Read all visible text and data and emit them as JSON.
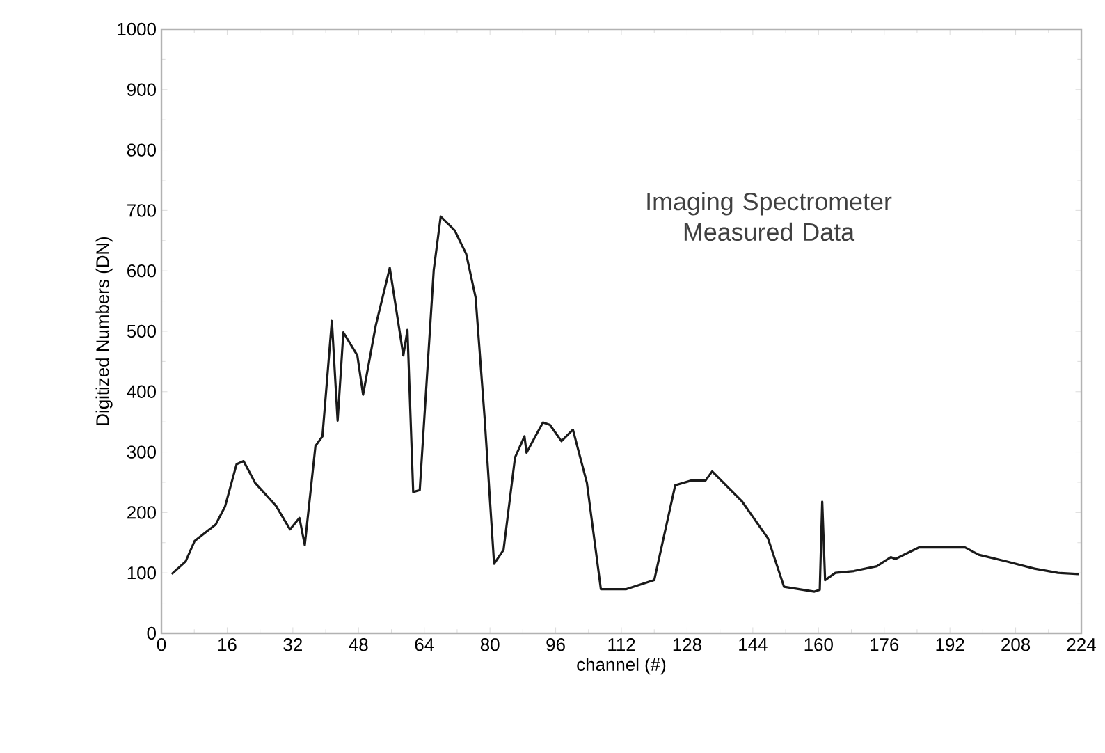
{
  "chart_data": {
    "type": "line",
    "xlabel": "channel (#)",
    "ylabel": "Digitized  Numbers (DN)",
    "annotations": [
      "Imaging Spectrometer Measured Data"
    ],
    "xlim": [
      0,
      224
    ],
    "ylim": [
      0,
      1000
    ],
    "xticks": [
      0,
      16,
      32,
      48,
      64,
      80,
      96,
      112,
      128,
      144,
      160,
      176,
      192,
      208,
      224
    ],
    "yticks": [
      0,
      100,
      200,
      300,
      400,
      500,
      600,
      700,
      800,
      900,
      1000
    ],
    "color": "#1a1a1a",
    "x": [
      2.5,
      5.9,
      8.1,
      13.2,
      15.5,
      18.3,
      20,
      22.8,
      27.9,
      31.3,
      33.6,
      34.9,
      37.5,
      39.2,
      41.5,
      42.9,
      44.3,
      47.7,
      49.1,
      52.2,
      55.6,
      58.9,
      59.9,
      61.3,
      62.9,
      66.3,
      68,
      71.4,
      74.2,
      76.5,
      78.7,
      81,
      83.3,
      86.1,
      88.4,
      88.9,
      92.9,
      94.6,
      97.4,
      100.2,
      103.6,
      107,
      113.2,
      120,
      125.1,
      129.1,
      132.5,
      134.1,
      141.4,
      147.7,
      151.6,
      159,
      160.3,
      160.9,
      161.6,
      164.1,
      168.6,
      174.2,
      177.6,
      178.7,
      184.4,
      188.9,
      195.7,
      199,
      205.8,
      212.6,
      218.3,
      223.4
    ],
    "values": [
      98,
      119,
      153,
      180,
      210,
      280,
      285,
      249,
      211,
      172,
      191,
      146,
      310,
      326,
      517,
      352,
      498,
      460,
      395,
      510,
      605,
      460,
      502,
      234,
      237,
      601,
      690,
      667,
      628,
      556,
      356,
      115,
      138,
      291,
      326,
      299,
      349,
      345,
      318,
      337,
      249,
      73,
      73,
      88,
      245,
      253,
      253,
      268,
      218,
      157,
      77,
      69,
      72,
      218,
      88,
      100,
      103,
      111,
      126,
      123,
      142,
      142,
      142,
      130,
      119,
      107,
      100,
      98
    ]
  }
}
